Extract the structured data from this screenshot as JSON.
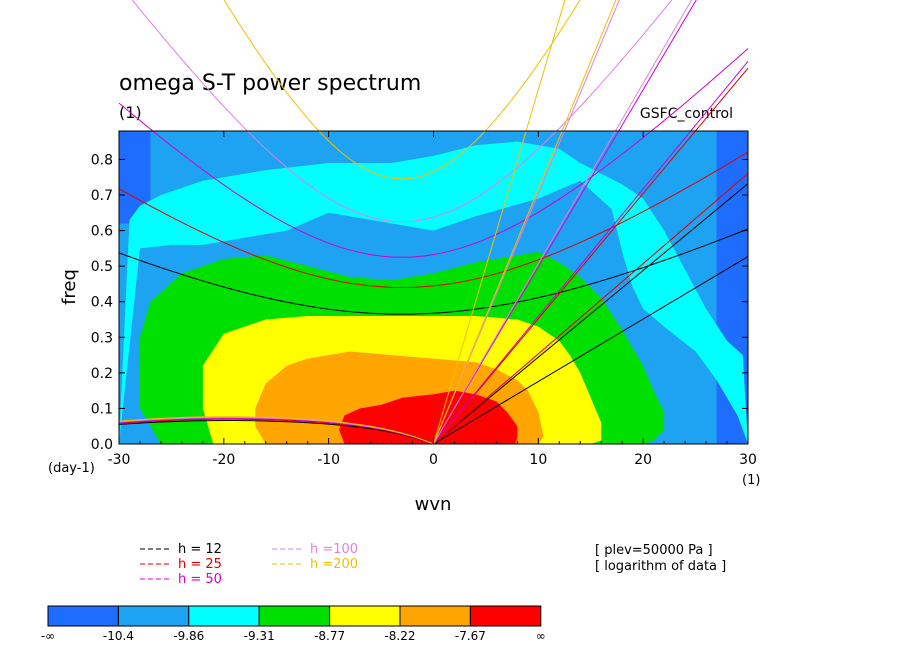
{
  "chart_data": {
    "type": "heatmap",
    "title": "omega S-T power spectrum",
    "subtitle": "(1)",
    "run_label": "GSFC_control",
    "xlabel": "wvn",
    "ylabel": "freq",
    "x_unit_label": "(1)",
    "y_unit_label": "(day-1)",
    "xlim": [
      -30,
      30
    ],
    "ylim": [
      0,
      0.88
    ],
    "xticks": [
      "-30",
      "-20",
      "-10",
      "0",
      "10",
      "20",
      "30"
    ],
    "yticks": [
      "0.0",
      "0.1",
      "0.2",
      "0.3",
      "0.4",
      "0.5",
      "0.6",
      "0.7",
      "0.8"
    ],
    "contour_levels": [
      "-∞",
      "-10.4",
      "-9.86",
      "-9.31",
      "-8.77",
      "-8.22",
      "-7.67",
      "∞"
    ],
    "fill_colors": [
      "#1f6dff",
      "#1ea2f2",
      "#00ffff",
      "#00e000",
      "#ffff00",
      "#ffa500",
      "#ff0000"
    ],
    "contour_regions": [
      {
        "level": "-9.86 to -9.31",
        "boundary_x": [
          -30,
          -29,
          -28,
          -26,
          -22,
          -16,
          -10,
          -4,
          0,
          4,
          8,
          10,
          12,
          14,
          16,
          18,
          20,
          22,
          24,
          26,
          28,
          29.5,
          30,
          29,
          27,
          25,
          22,
          20,
          19,
          18,
          17,
          14,
          10,
          4,
          0,
          -4,
          -10,
          -14,
          -18,
          -22,
          -25,
          -28,
          -30
        ],
        "boundary_y": [
          0.0,
          0.63,
          0.67,
          0.7,
          0.74,
          0.77,
          0.79,
          0.79,
          0.81,
          0.84,
          0.85,
          0.84,
          0.83,
          0.79,
          0.76,
          0.73,
          0.69,
          0.6,
          0.49,
          0.38,
          0.29,
          0.25,
          0.0,
          0.08,
          0.18,
          0.26,
          0.33,
          0.38,
          0.44,
          0.54,
          0.66,
          0.74,
          0.69,
          0.64,
          0.6,
          0.62,
          0.65,
          0.6,
          0.58,
          0.56,
          0.56,
          0.55,
          0.0
        ]
      },
      {
        "level": "-9.31 to -8.77",
        "boundary_x": [
          -26,
          -28,
          -28,
          -27,
          -24,
          -20,
          -16,
          -12,
          -8,
          -4,
          0,
          4,
          8,
          10,
          12,
          14,
          16,
          18,
          20,
          21,
          22,
          22,
          21,
          20,
          0,
          -22,
          -26
        ],
        "boundary_y": [
          0.0,
          0.1,
          0.3,
          0.4,
          0.48,
          0.52,
          0.53,
          0.5,
          0.47,
          0.46,
          0.48,
          0.51,
          0.53,
          0.54,
          0.51,
          0.47,
          0.41,
          0.32,
          0.22,
          0.15,
          0.09,
          0.04,
          0.01,
          0.0,
          0.0,
          0.0,
          0.0
        ]
      },
      {
        "level": "-8.77 to -8.22",
        "boundary_x": [
          -21,
          -22,
          -22,
          -20,
          -16,
          -12,
          -8,
          -4,
          0,
          4,
          8,
          10,
          12,
          13,
          14,
          15,
          16,
          16,
          15,
          14,
          0,
          -21
        ],
        "boundary_y": [
          0.0,
          0.1,
          0.22,
          0.31,
          0.35,
          0.36,
          0.36,
          0.36,
          0.36,
          0.36,
          0.35,
          0.33,
          0.29,
          0.25,
          0.2,
          0.13,
          0.06,
          0.01,
          0.0,
          0.0,
          0.0,
          0.0
        ]
      },
      {
        "level": "-8.22 to -7.67",
        "boundary_x": [
          -16,
          -17,
          -17,
          -16,
          -14,
          -12,
          -8,
          -4,
          0,
          4,
          6,
          8,
          9,
          10,
          10.5,
          10,
          0,
          -16
        ],
        "boundary_y": [
          0.0,
          0.05,
          0.1,
          0.17,
          0.22,
          0.24,
          0.26,
          0.25,
          0.24,
          0.23,
          0.21,
          0.18,
          0.15,
          0.09,
          0.02,
          0.0,
          0.0,
          0.0
        ]
      },
      {
        "level": "-7.67 to ∞",
        "boundary_x": [
          -8.5,
          -9,
          -8.5,
          -7,
          -5,
          -3,
          0,
          2,
          4,
          6,
          7,
          8,
          8,
          7.8,
          0,
          -8.5
        ],
        "boundary_y": [
          0.0,
          0.04,
          0.08,
          0.1,
          0.11,
          0.13,
          0.14,
          0.15,
          0.14,
          0.12,
          0.09,
          0.05,
          0.02,
          0.0,
          0.0,
          0.0
        ]
      }
    ],
    "dispersion_curves": [
      {
        "name": "h = 12",
        "color": "#000000",
        "linestyle": "dashed"
      },
      {
        "name": "h = 25",
        "color": "#e00000",
        "linestyle": "dashed"
      },
      {
        "name": "h = 50",
        "color": "#d000d0",
        "linestyle": "dashed"
      },
      {
        "name": "h =100",
        "color": "#e080e0",
        "linestyle": "dashed"
      },
      {
        "name": "h =200",
        "color": "#f0c000",
        "linestyle": "dashed"
      }
    ],
    "dispersion_model": {
      "kelvin_speed_per_h": 0.0244,
      "ig_min_freq": [
        0.365,
        0.44,
        0.525,
        0.625,
        0.745
      ],
      "ig_min_wvn": -3,
      "ig_speed_scale": [
        0.0146,
        0.021,
        0.0297,
        0.042,
        0.059
      ],
      "rossby_freq_at_-30": [
        0.055,
        0.058,
        0.06,
        0.062,
        0.064
      ]
    },
    "annotations": [
      "[ plev=50000 Pa ]",
      "[ logarithm of data ]"
    ]
  }
}
